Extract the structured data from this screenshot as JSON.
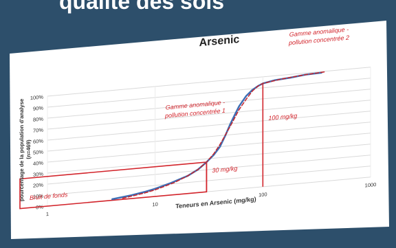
{
  "slide": {
    "title": "qualité des sols"
  },
  "colors": {
    "background": "#2d4f6b",
    "card": "#ffffff",
    "series_measured": "#3f6fb5",
    "series_fitted": "#c4262e",
    "annotation": "#d2232a",
    "grid": "#d9d9d9",
    "text": "#333333"
  },
  "chart_data": {
    "type": "line",
    "title": "Arsenic",
    "xlabel": "Teneurs en Arsenic (mg/kg)",
    "ylabel": "pourcentage de la population d'analyse (n=469)",
    "x_scale": "log",
    "xlim": [
      1,
      1000
    ],
    "ylim": [
      0,
      100
    ],
    "x_ticks": [
      "1",
      "10",
      "100",
      "1000"
    ],
    "y_ticks": [
      "0%",
      "10%",
      "20%",
      "30%",
      "40%",
      "50%",
      "60%",
      "70%",
      "80%",
      "90%",
      "100%"
    ],
    "grid": true,
    "series": [
      {
        "style": "solid",
        "color": "#3f6fb5",
        "x": [
          4,
          6,
          8,
          10,
          14,
          20,
          25,
          30,
          35,
          40,
          45,
          50,
          55,
          60,
          70,
          80,
          90,
          100,
          130,
          180,
          250,
          350
        ],
        "y": [
          1,
          3,
          5,
          7,
          11,
          16,
          21,
          27,
          33,
          40,
          50,
          60,
          68,
          75,
          84,
          89,
          92,
          94,
          96,
          97,
          98.5,
          99
        ]
      },
      {
        "style": "dashed",
        "color": "#c4262e",
        "x": [
          5,
          8,
          10,
          15,
          20,
          25,
          30,
          35,
          40,
          50,
          60,
          70,
          80,
          90,
          100,
          150,
          250,
          380
        ],
        "y": [
          1,
          4,
          6,
          11,
          16,
          21,
          27,
          34,
          42,
          58,
          72,
          81,
          88,
          92,
          94,
          96.5,
          98.5,
          99.5
        ]
      }
    ],
    "annotations": [
      {
        "text": "Bruit de fonds",
        "type": "box",
        "x_range": [
          1,
          30
        ],
        "y_range": [
          0,
          27
        ]
      },
      {
        "text": "30 mg/kg",
        "type": "vline",
        "x": 30,
        "y_top": 27
      },
      {
        "text": "Gamme anomalique - pollution concentrée 1",
        "type": "label"
      },
      {
        "text": "100 mg/kg",
        "type": "vline",
        "x": 100,
        "y_top": 94
      },
      {
        "text": "Gamme anomalique - pollution concentrée 2",
        "type": "label"
      }
    ]
  }
}
